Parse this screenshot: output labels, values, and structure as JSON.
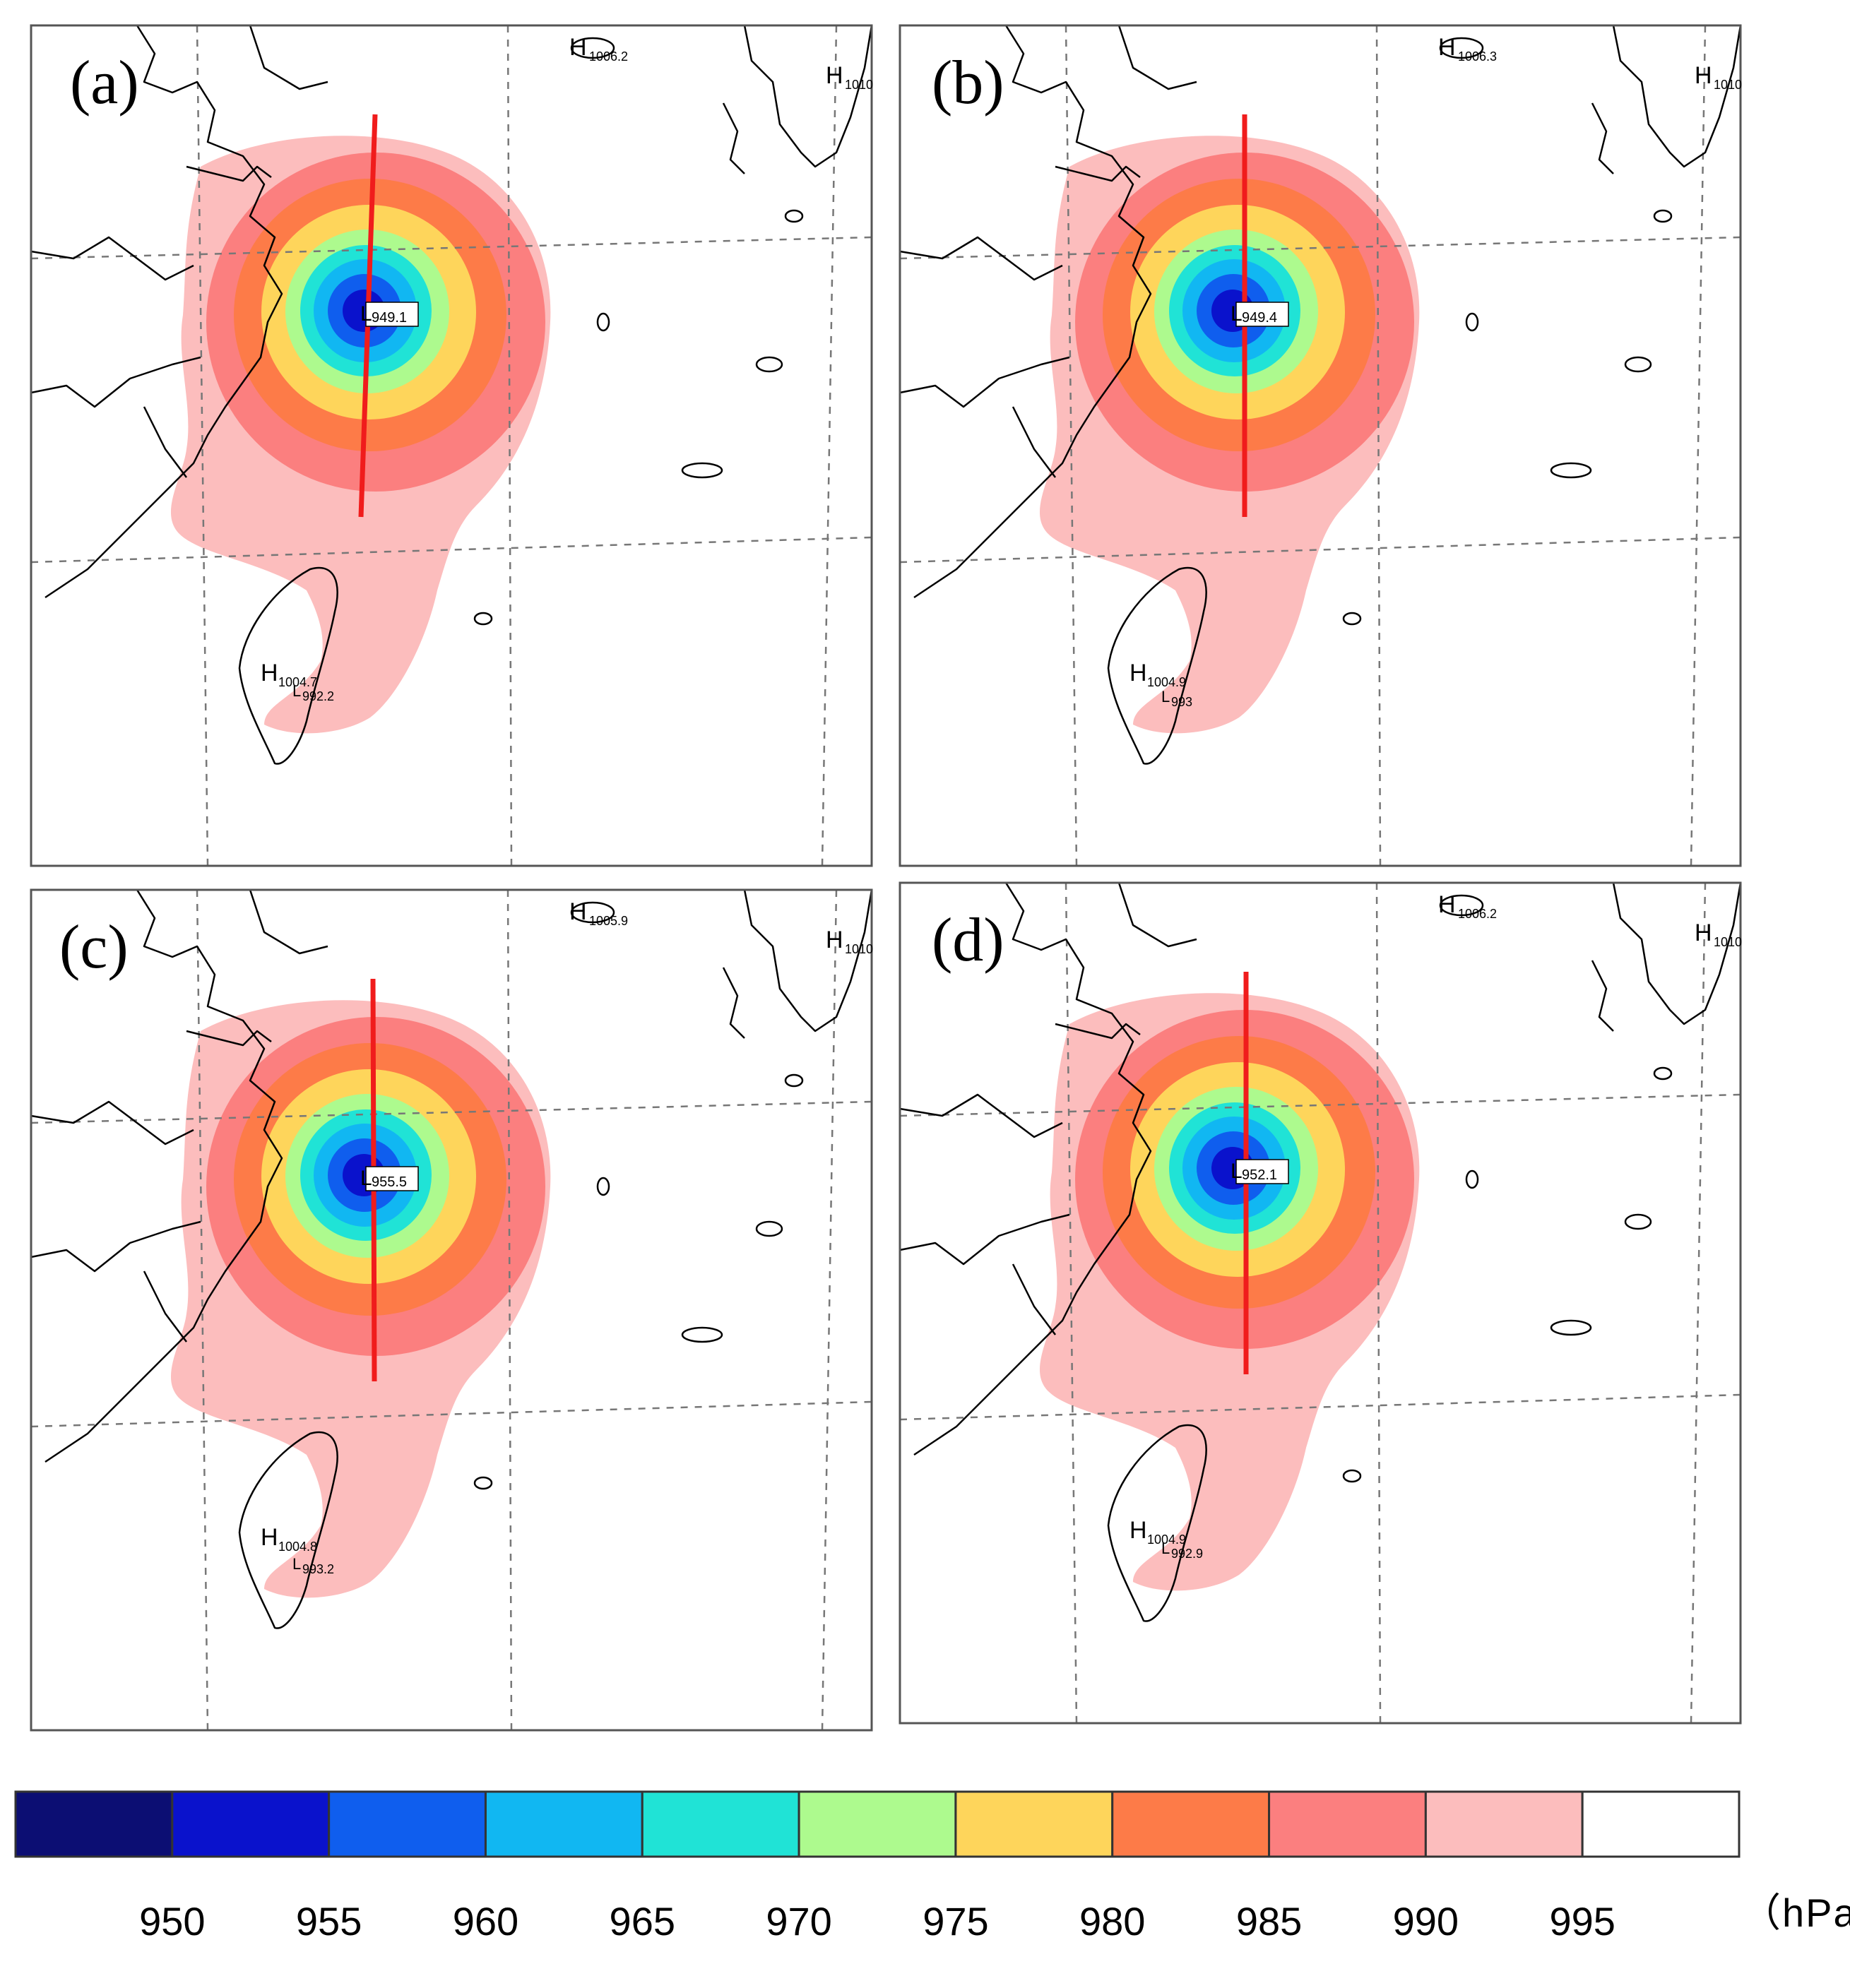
{
  "panels": [
    {
      "id": "a",
      "label": "(a)",
      "center_value": "949.1",
      "high_ne": "1006.2",
      "high_far": "1010",
      "high_taiwan": "1004.7",
      "low_taiwan": "992.2"
    },
    {
      "id": "b",
      "label": "(b)",
      "center_value": "949.4",
      "high_ne": "1006.3",
      "high_far": "1010",
      "high_taiwan": "1004.9",
      "low_taiwan": "993"
    },
    {
      "id": "c",
      "label": "(c)",
      "center_value": "955.5",
      "high_ne": "1005.9",
      "high_far": "1010",
      "high_taiwan": "1004.8",
      "low_taiwan": "993.2"
    },
    {
      "id": "d",
      "label": "(d)",
      "center_value": "952.1",
      "high_ne": "1006.2",
      "high_far": "1010",
      "high_taiwan": "1004.9",
      "low_taiwan": "992.9"
    }
  ],
  "map_symbols": {
    "high": "H",
    "low": "L"
  },
  "legend": {
    "unit": "（hPa）",
    "bins": [
      {
        "color": "#0c0e73",
        "label": "950"
      },
      {
        "color": "#0a12cc",
        "label": "955"
      },
      {
        "color": "#0f5eee",
        "label": "960"
      },
      {
        "color": "#11b7f2",
        "label": "965"
      },
      {
        "color": "#20e3d6",
        "label": "970"
      },
      {
        "color": "#adfa8e",
        "label": "975"
      },
      {
        "color": "#fed55b",
        "label": "980"
      },
      {
        "color": "#fd7b48",
        "label": "985"
      },
      {
        "color": "#fb7f7f",
        "label": "990"
      },
      {
        "color": "#fcbdbd",
        "label": "995"
      },
      {
        "color": "#ffffff",
        "label": ""
      }
    ]
  }
}
